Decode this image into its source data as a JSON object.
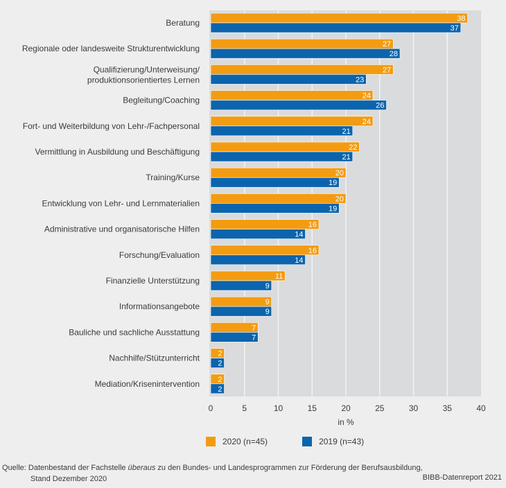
{
  "chart_data": {
    "type": "bar",
    "orientation": "horizontal",
    "title": "",
    "xlabel": "in %",
    "ylabel": "",
    "xlim": [
      0,
      40
    ],
    "xticks": [
      0,
      5,
      10,
      15,
      20,
      25,
      30,
      35,
      40
    ],
    "grid": true,
    "legend_position": "bottom",
    "categories": [
      "Beratung",
      "Regionale oder landesweite Strukturentwicklung",
      "Qualifizierung/Unterweisung/\nproduktionsorientiertes Lernen",
      "Begleitung/Coaching",
      "Fort- und Weiterbildung von Lehr-/Fachpersonal",
      "Vermittlung in Ausbildung und Beschäftigung",
      "Training/Kurse",
      "Entwicklung von Lehr- und Lernmaterialien",
      "Administrative und organisatorische Hilfen",
      "Forschung/Evaluation",
      "Finanzielle Unterstützung",
      "Informationsangebote",
      "Bauliche und sachliche Ausstattung",
      "Nachhilfe/Stützunterricht",
      "Mediation/Krisenintervention"
    ],
    "series": [
      {
        "name": "2020 (n=45)",
        "color": "#f39c12",
        "values": [
          38,
          27,
          27,
          24,
          24,
          22,
          20,
          20,
          16,
          16,
          11,
          9,
          7,
          2,
          2
        ]
      },
      {
        "name": "2019 (n=43)",
        "color": "#0b64ad",
        "values": [
          37,
          28,
          23,
          26,
          21,
          21,
          19,
          19,
          14,
          14,
          9,
          9,
          7,
          2,
          2
        ]
      }
    ]
  },
  "colors": {
    "background": "#eeeeef",
    "plot_background": "#dadbdd",
    "gridline": "#f3f3f4"
  },
  "legend": {
    "items": [
      {
        "label": "2020 (n=45)",
        "color": "#f39c12"
      },
      {
        "label": "2019 (n=43)",
        "color": "#0b64ad"
      }
    ]
  },
  "footer": {
    "source_prefix": "Quelle: Datenbestand der Fachstelle ",
    "source_emphasis": "überaus",
    "source_suffix": " zu den Bundes- und Landesprogrammen zur Förderung der Berufsausbildung,",
    "source_line2": "Stand Dezember 2020",
    "credit": "BIBB-Datenreport 2021"
  }
}
